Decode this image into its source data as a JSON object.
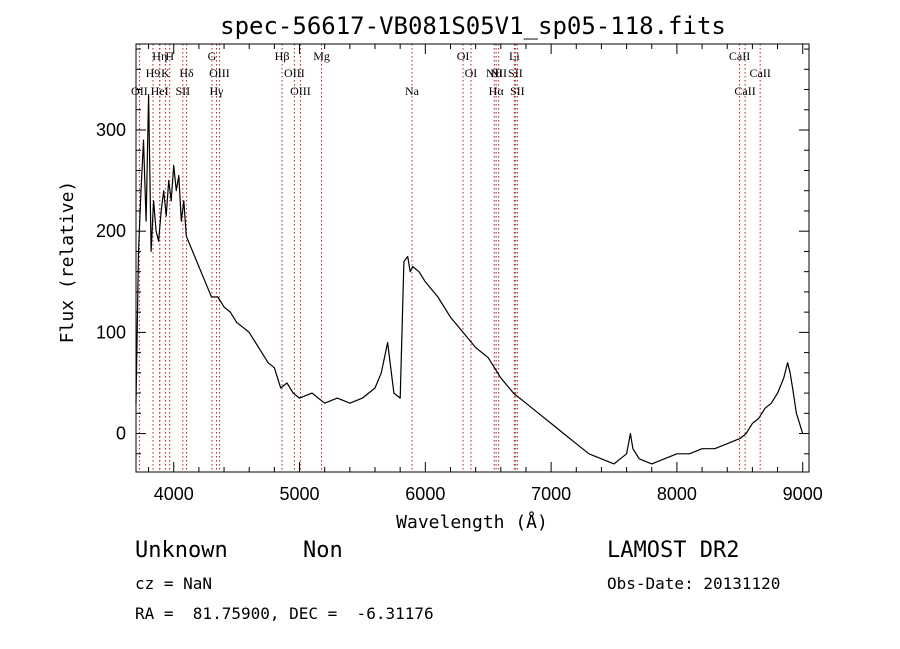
{
  "chart_data": {
    "type": "line",
    "title": "spec-56617-VB081S05V1_sp05-118.fits",
    "xlabel": "Wavelength (Å)",
    "ylabel": "Flux (relative)",
    "xlim": [
      3700,
      9050
    ],
    "ylim": [
      -38,
      385
    ],
    "xticks": [
      4000,
      5000,
      6000,
      7000,
      8000,
      9000
    ],
    "yticks": [
      0,
      100,
      200,
      300
    ],
    "series": [
      {
        "color": "#000000",
        "x": [
          3700,
          3720,
          3740,
          3760,
          3780,
          3800,
          3820,
          3840,
          3860,
          3880,
          3900,
          3920,
          3940,
          3960,
          3980,
          4000,
          4020,
          4040,
          4060,
          4080,
          4100,
          4150,
          4200,
          4250,
          4300,
          4350,
          4400,
          4450,
          4500,
          4550,
          4600,
          4650,
          4700,
          4750,
          4800,
          4850,
          4900,
          4950,
          5000,
          5100,
          5200,
          5300,
          5400,
          5500,
          5600,
          5650,
          5700,
          5750,
          5800,
          5830,
          5860,
          5880,
          5900,
          5950,
          6000,
          6100,
          6200,
          6300,
          6400,
          6500,
          6600,
          6700,
          6800,
          6900,
          7000,
          7100,
          7200,
          7300,
          7400,
          7500,
          7550,
          7600,
          7630,
          7650,
          7700,
          7800,
          7900,
          8000,
          8100,
          8200,
          8300,
          8400,
          8500,
          8550,
          8600,
          8650,
          8700,
          8750,
          8800,
          8850,
          8880,
          8900,
          8920,
          8950,
          9000
        ],
        "y": [
          30,
          180,
          240,
          290,
          210,
          335,
          180,
          230,
          200,
          190,
          220,
          240,
          215,
          250,
          230,
          265,
          240,
          255,
          210,
          230,
          195,
          180,
          165,
          150,
          135,
          135,
          125,
          120,
          110,
          105,
          100,
          90,
          80,
          70,
          65,
          45,
          50,
          40,
          35,
          40,
          30,
          35,
          30,
          35,
          45,
          60,
          90,
          40,
          35,
          170,
          175,
          160,
          165,
          160,
          150,
          135,
          115,
          100,
          85,
          75,
          55,
          40,
          30,
          20,
          10,
          0,
          -10,
          -20,
          -25,
          -30,
          -25,
          -20,
          0,
          -15,
          -25,
          -30,
          -25,
          -20,
          -20,
          -15,
          -15,
          -10,
          -5,
          0,
          10,
          15,
          25,
          30,
          40,
          55,
          70,
          60,
          45,
          20,
          0
        ]
      }
    ],
    "lines": [
      {
        "name": "OII",
        "x": 3727,
        "row": 3
      },
      {
        "name": "H9",
        "x": 3835,
        "row": 2
      },
      {
        "name": "Hη",
        "x": 3889,
        "row": 1
      },
      {
        "name": "HeI",
        "x": 3888,
        "row": 3
      },
      {
        "name": "K",
        "x": 3934,
        "row": 2
      },
      {
        "name": "H",
        "x": 3968,
        "row": 1
      },
      {
        "name": "SII",
        "x": 4072,
        "row": 3
      },
      {
        "name": "Hδ",
        "x": 4102,
        "row": 2
      },
      {
        "name": "G",
        "x": 4304,
        "row": 1
      },
      {
        "name": "OIII",
        "x": 4363,
        "row": 2
      },
      {
        "name": "Hγ",
        "x": 4340,
        "row": 3
      },
      {
        "name": "Hβ",
        "x": 4861,
        "row": 1
      },
      {
        "name": "OIII",
        "x": 4959,
        "row": 2
      },
      {
        "name": "OIII",
        "x": 5007,
        "row": 3
      },
      {
        "name": "Mg",
        "x": 5175,
        "row": 1
      },
      {
        "name": "Na",
        "x": 5894,
        "row": 3
      },
      {
        "name": "OI",
        "x": 6300,
        "row": 1
      },
      {
        "name": "OI",
        "x": 6363,
        "row": 2
      },
      {
        "name": "NII",
        "x": 6548,
        "row": 2
      },
      {
        "name": "Hα",
        "x": 6563,
        "row": 3
      },
      {
        "name": "NII",
        "x": 6583,
        "row": 2
      },
      {
        "name": "Li",
        "x": 6708,
        "row": 1
      },
      {
        "name": "SII",
        "x": 6716,
        "row": 2
      },
      {
        "name": "SII",
        "x": 6731,
        "row": 3
      },
      {
        "name": "CaII",
        "x": 8498,
        "row": 1
      },
      {
        "name": "CaII",
        "x": 8542,
        "row": 3
      },
      {
        "name": "CaII",
        "x": 8662,
        "row": 2
      }
    ]
  },
  "info": {
    "class": "Unknown",
    "subclass": "Non",
    "survey": "LAMOST DR2",
    "cz": "cz = NaN",
    "obs_date": "Obs-Date: 20131120",
    "coords": "RA =  81.75900, DEC =  -6.31176"
  }
}
